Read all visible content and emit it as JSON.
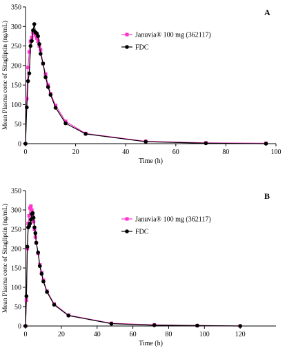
{
  "ylabel": "Mean Plasma conc of Sitagliptin (ng/mL)",
  "chart_data": [
    {
      "type": "line",
      "panel_label": "A",
      "xlabel": "Time (h)",
      "xlim": [
        0,
        100
      ],
      "ylim": [
        0,
        350
      ],
      "xticks": [
        0,
        20,
        40,
        60,
        80,
        100
      ],
      "yticks": [
        0,
        50,
        100,
        150,
        200,
        250,
        300,
        350
      ],
      "grid": false,
      "legend_position": "top-right",
      "series": [
        {
          "name": "Januvia® 100 mg  (362117)",
          "color": "#ff33cc",
          "marker": "square",
          "x": [
            0,
            0.5,
            1,
            1.5,
            2,
            2.5,
            3,
            3.5,
            4,
            4.5,
            5,
            5.5,
            6,
            7,
            8,
            9,
            10,
            12,
            16,
            24,
            48,
            72,
            96
          ],
          "y": [
            0,
            115,
            195,
            235,
            262,
            272,
            283,
            282,
            278,
            270,
            262,
            250,
            240,
            205,
            178,
            150,
            128,
            98,
            57,
            26,
            6,
            2,
            1
          ]
        },
        {
          "name": "FDC",
          "color": "#000000",
          "marker": "circle",
          "x": [
            0,
            0.5,
            1,
            1.5,
            2,
            2.5,
            3,
            3.5,
            4,
            4.5,
            5,
            5.5,
            6,
            7,
            8,
            9,
            10,
            12,
            16,
            24,
            48,
            72,
            96
          ],
          "y": [
            0,
            93,
            160,
            180,
            250,
            263,
            290,
            306,
            285,
            282,
            275,
            255,
            230,
            205,
            170,
            145,
            125,
            92,
            52,
            25,
            5,
            1,
            0
          ]
        }
      ]
    },
    {
      "type": "line",
      "panel_label": "B",
      "xlabel": "Time (h)",
      "xlim": [
        0,
        140
      ],
      "ylim": [
        0,
        350
      ],
      "xticks": [
        0,
        20,
        40,
        60,
        80,
        100,
        120
      ],
      "yticks": [
        0,
        50,
        100,
        150,
        200,
        250,
        300,
        350
      ],
      "grid": false,
      "legend_position": "top-right",
      "series": [
        {
          "name": "Januvia® 100 mg  (362117)",
          "color": "#ff33cc",
          "marker": "square",
          "x": [
            0,
            0.5,
            1,
            1.5,
            2,
            2.5,
            3,
            3.5,
            4,
            4.5,
            5,
            5.5,
            6,
            7,
            8,
            9,
            10,
            12,
            16,
            24,
            48,
            72,
            96,
            120
          ],
          "y": [
            0,
            67,
            200,
            265,
            285,
            305,
            310,
            300,
            290,
            270,
            250,
            230,
            215,
            188,
            158,
            138,
            118,
            90,
            57,
            28,
            7,
            3,
            1,
            0
          ]
        },
        {
          "name": "FDC",
          "color": "#000000",
          "marker": "circle",
          "x": [
            0,
            0.5,
            1,
            1.5,
            2,
            2.5,
            3,
            3.5,
            4,
            4.5,
            5,
            5.5,
            6,
            7,
            8,
            9,
            10,
            12,
            16,
            24,
            48,
            72,
            96,
            120
          ],
          "y": [
            0,
            77,
            205,
            255,
            258,
            265,
            275,
            290,
            292,
            280,
            255,
            240,
            215,
            190,
            155,
            135,
            115,
            88,
            55,
            27,
            6,
            2,
            1,
            0
          ]
        }
      ]
    }
  ]
}
